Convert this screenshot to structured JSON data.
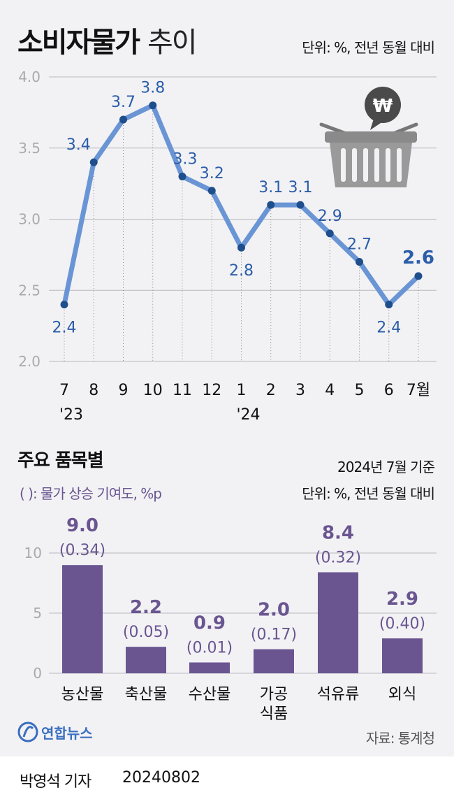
{
  "header": {
    "title_bold": "소비자물가",
    "title_light": "추이",
    "unit": "단위: %, 전년 동월 대비"
  },
  "colors": {
    "line": "#6a95d5",
    "point": "#1f4e8c",
    "label": "#2b5da8",
    "bar": "#6a5590",
    "grid": "#b8b8be"
  },
  "chart_data": [
    {
      "type": "line",
      "categories": [
        "7",
        "8",
        "9",
        "10",
        "11",
        "12",
        "1",
        "2",
        "3",
        "4",
        "5",
        "6",
        "7월"
      ],
      "year_labels": {
        "0": "'23",
        "6": "'24"
      },
      "values": [
        2.4,
        3.4,
        3.7,
        3.8,
        3.3,
        3.2,
        2.8,
        3.1,
        3.1,
        2.9,
        2.7,
        2.4,
        2.6
      ],
      "data_labels": [
        "2.4",
        "3.4",
        "3.7",
        "3.8",
        "3.3",
        "3.2",
        "2.8",
        "3.1",
        "3.1",
        "2.9",
        "2.7",
        "2.4",
        "2.6"
      ],
      "yticks": [
        "2.0",
        "2.5",
        "3.0",
        "3.5",
        "4.0"
      ],
      "ylim": [
        2.0,
        4.0
      ],
      "grid": true
    },
    {
      "type": "bar",
      "title": "주요 품목별",
      "basis": "2024년 7월 기준",
      "unit": "단위: %, 전년 동월 대비",
      "note": "(  ): 물가 상승 기여도, %p",
      "categories": [
        "농산물",
        "축산물",
        "수산물",
        "가공\n식품",
        "석유류",
        "외식"
      ],
      "values": [
        9.0,
        2.2,
        0.9,
        2.0,
        8.4,
        2.9
      ],
      "value_labels": [
        "9.0",
        "2.2",
        "0.9",
        "2.0",
        "8.4",
        "2.9"
      ],
      "contributions": [
        "(0.34)",
        "(0.05)",
        "(0.01)",
        "(0.17)",
        "(0.32)",
        "(0.40)"
      ],
      "yticks": [
        "0",
        "5",
        "10"
      ],
      "ylim": [
        0,
        10
      ],
      "grid": true
    }
  ],
  "footer": {
    "logo": "연합뉴스",
    "source": "자료: 통계청",
    "byline": "박영석 기자",
    "date": "20240802"
  }
}
